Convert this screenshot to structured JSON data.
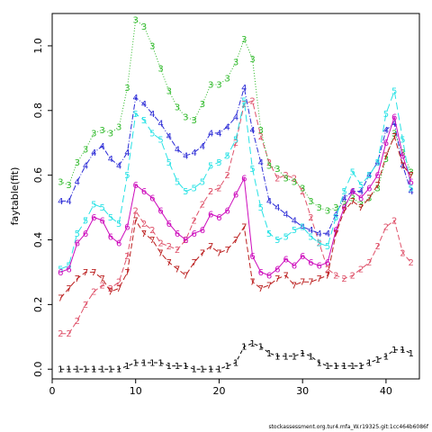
{
  "chart_data": {
    "type": "line",
    "ylabel": "faytable(fit)",
    "xlabel": "",
    "xlim": [
      0,
      44
    ],
    "ylim": [
      -0.03,
      1.1
    ],
    "x_ticks": [
      0,
      10,
      20,
      30,
      40
    ],
    "y_ticks": [
      0.0,
      0.2,
      0.4,
      0.6,
      0.8,
      1.0
    ],
    "x_tick_labels": [
      "0",
      "10",
      "20",
      "30",
      "40"
    ],
    "y_tick_labels": [
      "0.0",
      "0.2",
      "0.4",
      "0.6",
      "0.8",
      "1.0"
    ],
    "grid": false,
    "x": [
      1,
      2,
      3,
      4,
      5,
      6,
      7,
      8,
      9,
      10,
      11,
      12,
      13,
      14,
      15,
      16,
      17,
      18,
      19,
      20,
      21,
      22,
      23,
      24,
      25,
      26,
      27,
      28,
      29,
      30,
      31,
      32,
      33,
      34,
      35,
      36,
      37,
      38,
      39,
      40,
      41,
      42,
      43
    ],
    "series": [
      {
        "label": "1",
        "color": "#000000",
        "dash": "4,3",
        "values": [
          0.0,
          0.0,
          0.0,
          0.0,
          0.0,
          0.0,
          0.0,
          0.0,
          0.01,
          0.02,
          0.02,
          0.02,
          0.02,
          0.01,
          0.01,
          0.01,
          0.0,
          0.0,
          0.0,
          0.0,
          0.01,
          0.02,
          0.07,
          0.08,
          0.07,
          0.05,
          0.04,
          0.04,
          0.04,
          0.05,
          0.04,
          0.02,
          0.01,
          0.01,
          0.01,
          0.01,
          0.01,
          0.02,
          0.03,
          0.04,
          0.06,
          0.06,
          0.05
        ]
      },
      {
        "label": "2",
        "color": "#df536b",
        "dash": "6,3",
        "values": [
          0.11,
          0.11,
          0.15,
          0.2,
          0.24,
          0.26,
          0.25,
          0.27,
          0.35,
          0.49,
          0.45,
          0.43,
          0.39,
          0.38,
          0.37,
          0.4,
          0.46,
          0.51,
          0.55,
          0.56,
          0.6,
          0.7,
          0.82,
          0.83,
          0.72,
          0.64,
          0.59,
          0.6,
          0.59,
          0.55,
          0.47,
          0.39,
          0.31,
          0.29,
          0.28,
          0.29,
          0.31,
          0.33,
          0.38,
          0.44,
          0.46,
          0.36,
          0.33
        ]
      },
      {
        "label": "3",
        "color": "#2db928",
        "dash": "1,2",
        "values": [
          0.58,
          0.57,
          0.64,
          0.68,
          0.73,
          0.74,
          0.73,
          0.75,
          0.87,
          1.08,
          1.06,
          1.0,
          0.93,
          0.86,
          0.81,
          0.78,
          0.77,
          0.82,
          0.88,
          0.88,
          0.9,
          0.95,
          1.02,
          0.96,
          0.74,
          0.63,
          0.62,
          0.59,
          0.58,
          0.56,
          0.52,
          0.5,
          0.49,
          0.5,
          0.51,
          0.53,
          0.51,
          0.53,
          0.56,
          0.65,
          0.73,
          0.67,
          0.61
        ]
      },
      {
        "label": "4",
        "color": "#2b2bd6",
        "dash": "6,2,1,2",
        "values": [
          0.52,
          0.52,
          0.58,
          0.63,
          0.67,
          0.69,
          0.65,
          0.63,
          0.67,
          0.84,
          0.82,
          0.79,
          0.76,
          0.72,
          0.68,
          0.66,
          0.67,
          0.69,
          0.73,
          0.73,
          0.75,
          0.78,
          0.87,
          0.74,
          0.64,
          0.52,
          0.5,
          0.48,
          0.46,
          0.44,
          0.43,
          0.42,
          0.42,
          0.48,
          0.53,
          0.55,
          0.55,
          0.6,
          0.64,
          0.74,
          0.76,
          0.63,
          0.55
        ]
      },
      {
        "label": "5",
        "color": "#28e2e5",
        "dash": "8,4",
        "values": [
          0.31,
          0.32,
          0.42,
          0.46,
          0.51,
          0.5,
          0.47,
          0.45,
          0.6,
          0.79,
          0.77,
          0.73,
          0.71,
          0.64,
          0.58,
          0.55,
          0.56,
          0.58,
          0.63,
          0.64,
          0.66,
          0.71,
          0.83,
          0.62,
          0.5,
          0.42,
          0.4,
          0.41,
          0.43,
          0.44,
          0.41,
          0.39,
          0.38,
          0.47,
          0.55,
          0.61,
          0.57,
          0.6,
          0.64,
          0.79,
          0.86,
          0.71,
          0.56
        ]
      },
      {
        "label": "6",
        "color": "#cd0bbc",
        "dash": "",
        "values": [
          0.3,
          0.31,
          0.39,
          0.42,
          0.47,
          0.46,
          0.41,
          0.39,
          0.44,
          0.57,
          0.55,
          0.53,
          0.49,
          0.45,
          0.42,
          0.4,
          0.42,
          0.43,
          0.48,
          0.47,
          0.49,
          0.54,
          0.59,
          0.35,
          0.3,
          0.29,
          0.31,
          0.34,
          0.32,
          0.35,
          0.33,
          0.32,
          0.33,
          0.43,
          0.5,
          0.55,
          0.53,
          0.56,
          0.6,
          0.7,
          0.78,
          0.66,
          0.58
        ]
      },
      {
        "label": "7",
        "color": "#bb1e1e",
        "dash": "6,3",
        "values": [
          0.22,
          0.25,
          0.28,
          0.3,
          0.3,
          0.28,
          0.24,
          0.25,
          0.3,
          0.46,
          0.42,
          0.4,
          0.36,
          0.33,
          0.31,
          0.29,
          0.33,
          0.36,
          0.38,
          0.36,
          0.37,
          0.4,
          0.44,
          0.27,
          0.25,
          0.26,
          0.28,
          0.29,
          0.26,
          0.27,
          0.27,
          0.28,
          0.29,
          0.42,
          0.49,
          0.52,
          0.5,
          0.53,
          0.57,
          0.66,
          0.72,
          0.63,
          0.6
        ]
      }
    ]
  },
  "footer": {
    "text": "stockassessment.org.tur4.mfa_W.r19325.git:1cc464b6086f"
  }
}
